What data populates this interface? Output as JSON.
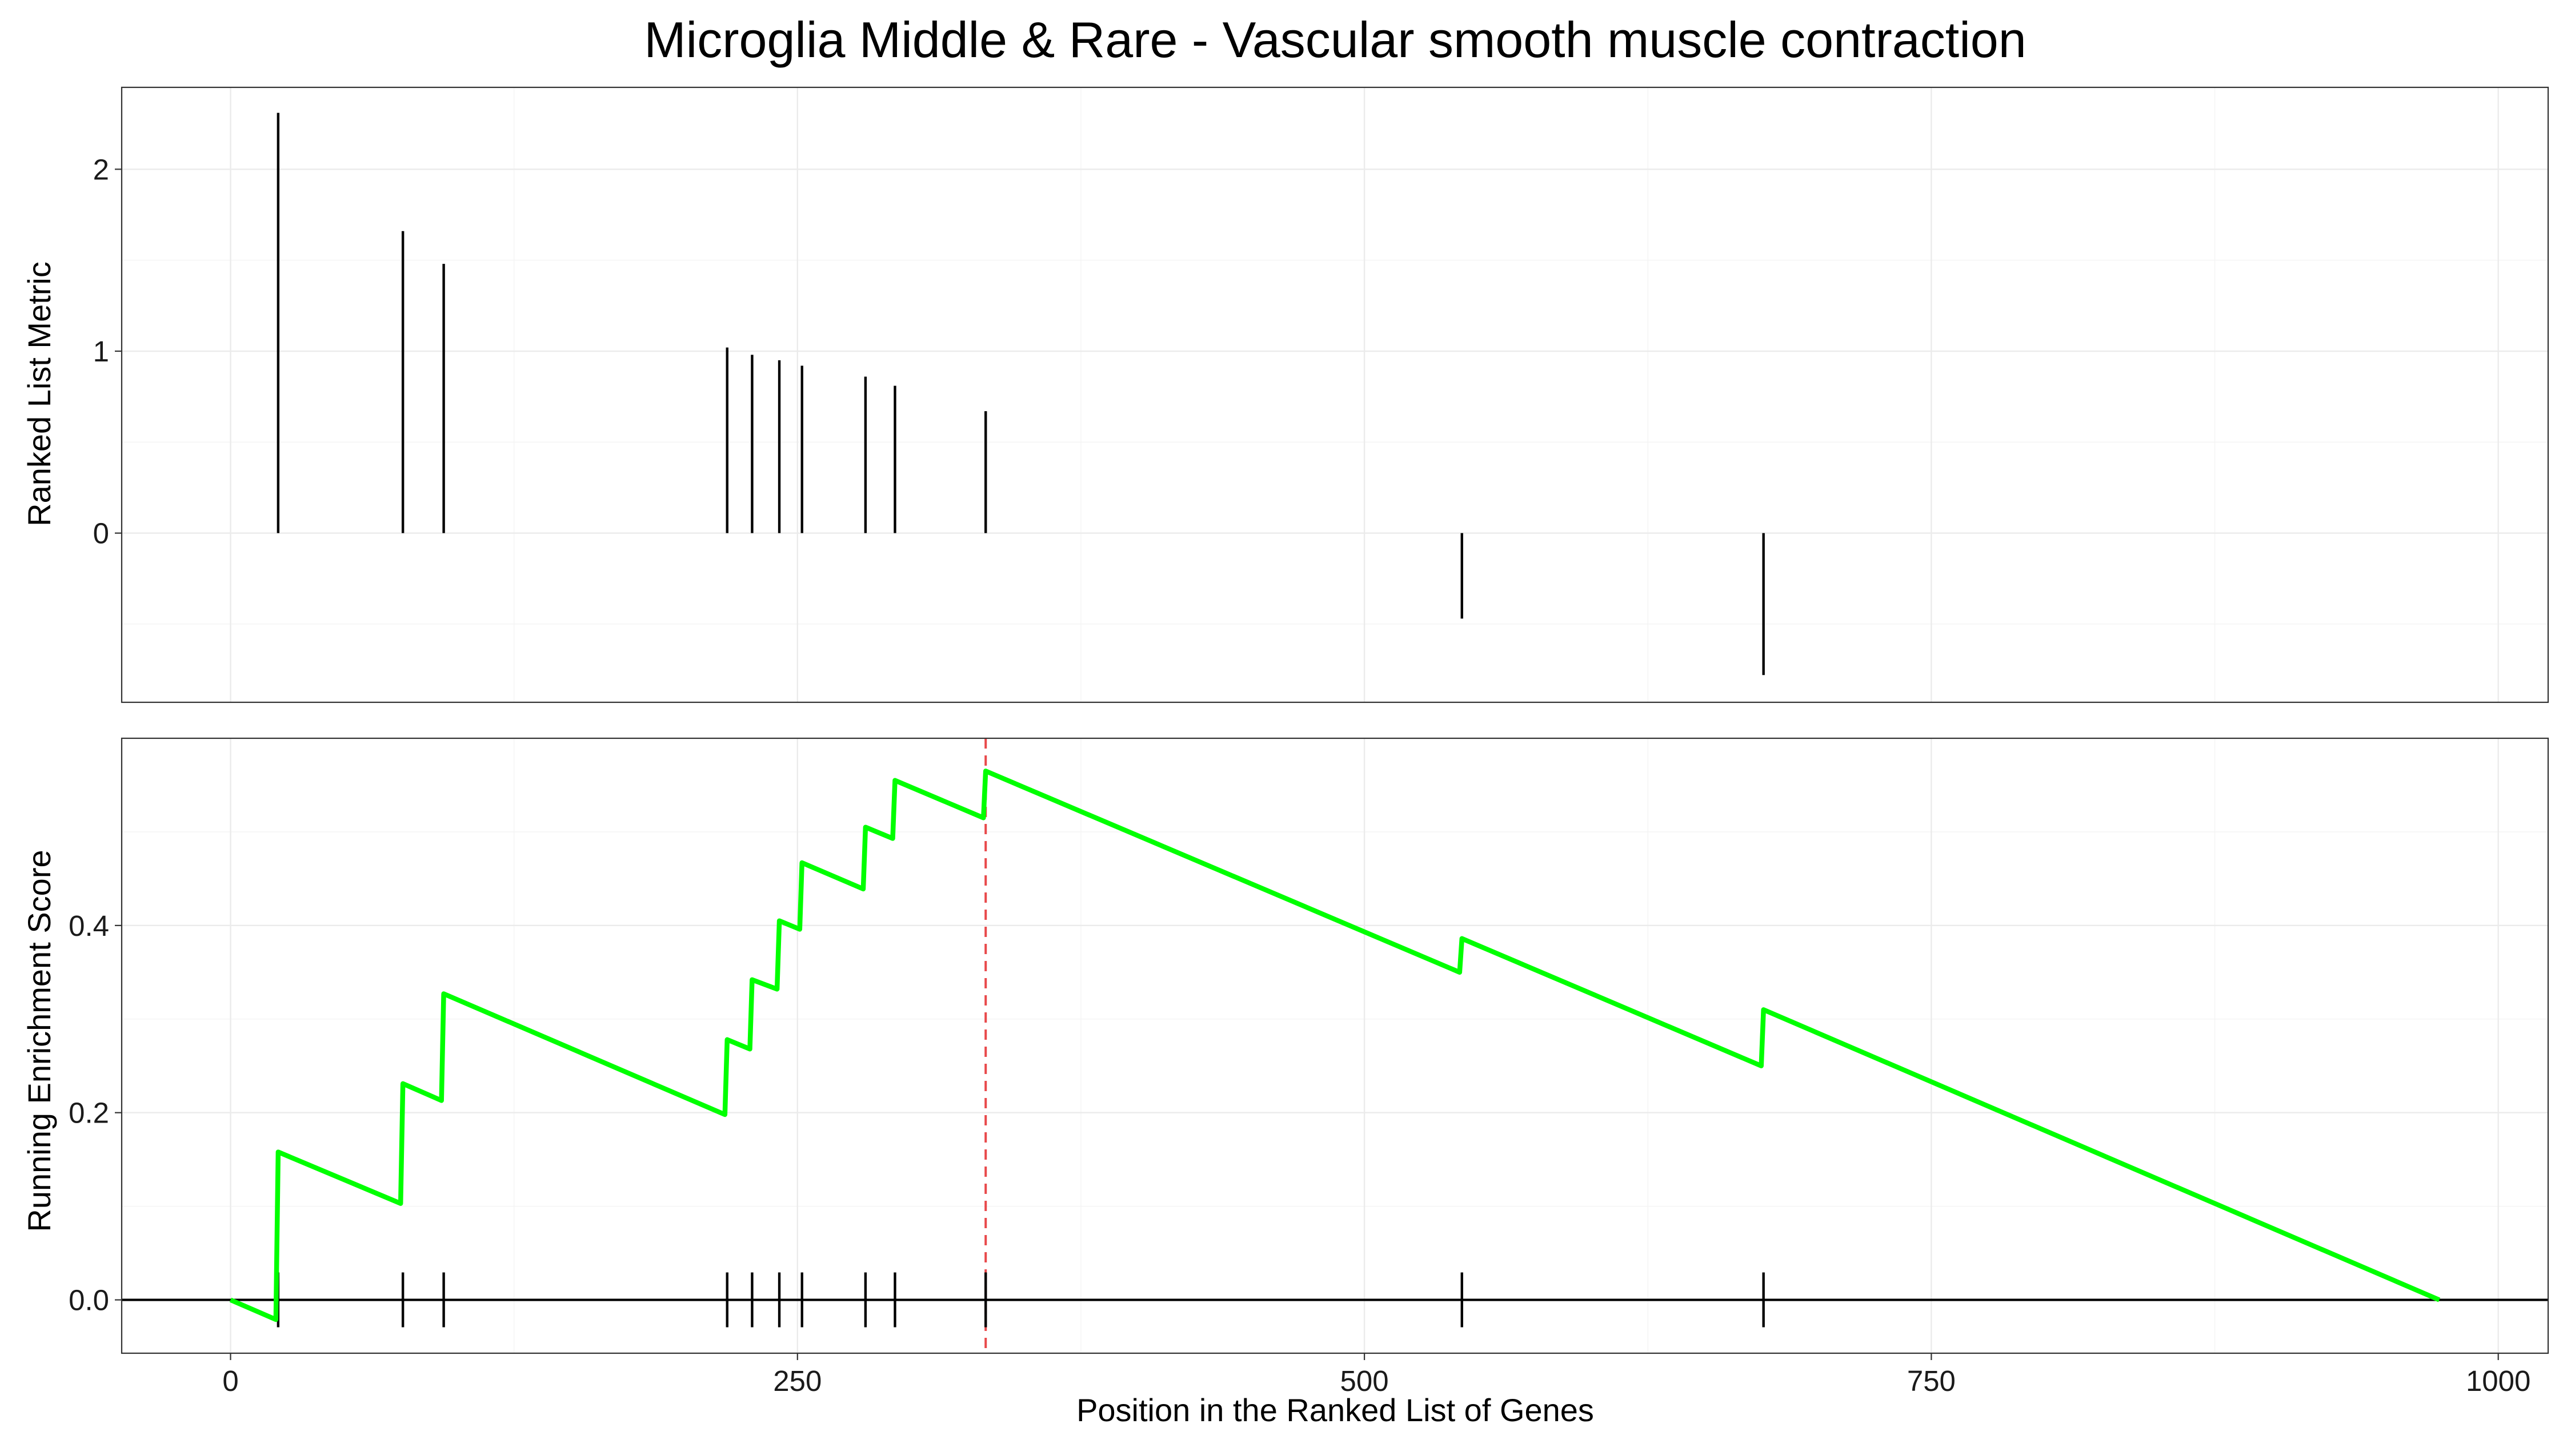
{
  "colors": {
    "es_line": "#00ff00",
    "max_marker": "#e8484a",
    "bars": "#000000"
  },
  "chart_data": {
    "type": "line",
    "title": "Microglia Middle & Rare - Vascular smooth muscle contraction",
    "xlabel": "Position in the Ranked List of Genes",
    "xlim": [
      -48,
      1022
    ],
    "x_ticks": [
      0,
      250,
      500,
      750,
      1000
    ],
    "x_tick_labels": [
      "0",
      "250",
      "500",
      "750",
      "1000"
    ],
    "panels": {
      "metric": {
        "type": "bar",
        "ylabel": "Ranked List Metric",
        "ylim": [
          -0.93,
          2.45
        ],
        "y_ticks": [
          0,
          1,
          2
        ],
        "y_tick_labels": [
          "0",
          "1",
          "2"
        ],
        "x": [
          21,
          76,
          94,
          219,
          230,
          242,
          252,
          280,
          293,
          333,
          543,
          676
        ],
        "values": [
          2.31,
          1.66,
          1.48,
          1.02,
          0.98,
          0.95,
          0.92,
          0.86,
          0.81,
          0.67,
          -0.47,
          -0.78
        ]
      },
      "enrichment": {
        "type": "line",
        "ylabel": "Running Enrichment Score",
        "ylim": [
          -0.057,
          0.6
        ],
        "y_ticks": [
          0.0,
          0.2,
          0.4
        ],
        "y_tick_labels": [
          "0.0",
          "0.2",
          "0.4"
        ],
        "hits": [
          21,
          76,
          94,
          219,
          230,
          242,
          252,
          280,
          293,
          333,
          543,
          676
        ],
        "series": [
          {
            "x": [
              0,
              20,
              21,
              75,
              76,
              93,
              94,
              218,
              219,
              229,
              230,
              241,
              242,
              251,
              252,
              279,
              280,
              292,
              293,
              332,
              333,
              542,
              543,
              675,
              676,
              974
            ],
            "values": [
              0.0,
              -0.021,
              0.158,
              0.103,
              0.231,
              0.213,
              0.327,
              0.198,
              0.278,
              0.268,
              0.342,
              0.332,
              0.405,
              0.396,
              0.467,
              0.439,
              0.505,
              0.493,
              0.555,
              0.515,
              0.565,
              0.35,
              0.386,
              0.25,
              0.31,
              0.0
            ]
          }
        ],
        "max_position": 333
      }
    }
  }
}
